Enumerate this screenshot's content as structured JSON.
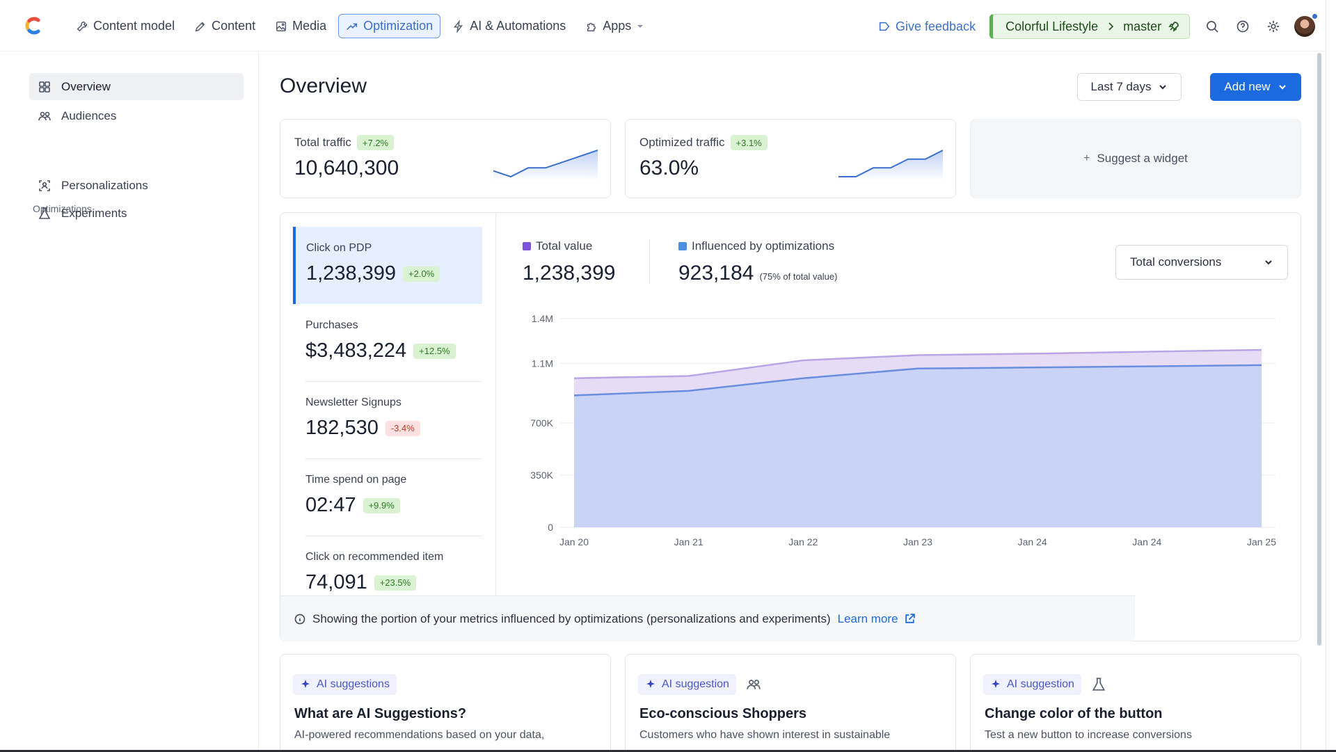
{
  "nav": {
    "items": [
      {
        "label": "Content model",
        "icon": "wrench-icon"
      },
      {
        "label": "Content",
        "icon": "pen-icon"
      },
      {
        "label": "Media",
        "icon": "image-icon"
      },
      {
        "label": "Optimization",
        "icon": "trend-icon",
        "active": true
      },
      {
        "label": "AI & Automations",
        "icon": "bolt-icon"
      },
      {
        "label": "Apps",
        "icon": "puzzle-icon"
      }
    ],
    "feedback": "Give feedback",
    "space": "Colorful Lifestyle",
    "environment": "master"
  },
  "sidebar": {
    "items": [
      {
        "label": "Overview",
        "active": true
      },
      {
        "label": "Audiences"
      }
    ],
    "section": "Optimizations",
    "optimizations": [
      {
        "label": "Personalizations"
      },
      {
        "label": "Experiments"
      }
    ]
  },
  "header": {
    "title": "Overview",
    "date_range": "Last 7 days",
    "add_new": "Add new"
  },
  "kpis": [
    {
      "label": "Total traffic",
      "change": "+7.2%",
      "value": "10,640,300",
      "spark": [
        3,
        1,
        4,
        4,
        6,
        8,
        10
      ]
    },
    {
      "label": "Optimized traffic",
      "change": "+3.1%",
      "value": "63.0%",
      "spark": [
        3,
        3,
        5,
        5,
        7,
        7,
        9
      ]
    }
  ],
  "suggest_widget": "Suggest a widget",
  "metrics": [
    {
      "label": "Click on PDP",
      "value": "1,238,399",
      "change": "+2.0%",
      "trend": "up",
      "selected": true
    },
    {
      "label": "Purchases",
      "value": "$3,483,224",
      "change": "+12.5%",
      "trend": "up"
    },
    {
      "label": "Newsletter Signups",
      "value": "182,530",
      "change": "-3.4%",
      "trend": "down"
    },
    {
      "label": "Time spend on page",
      "value": "02:47",
      "change": "+9.9%",
      "trend": "up"
    },
    {
      "label": "Click on recommended item",
      "value": "74,091",
      "change": "+23.5%",
      "trend": "up"
    }
  ],
  "legend": {
    "total_label": "Total value",
    "total_value": "1,238,399",
    "influenced_label": "Influenced by optimizations",
    "influenced_value": "923,184",
    "influenced_note": "(75% of total value)",
    "total_color": "#7a55d8",
    "influenced_color": "#4a90e2"
  },
  "conversion_select": "Total conversions",
  "chart_data": {
    "type": "area",
    "x": [
      "Jan 20",
      "Jan 21",
      "Jan 22",
      "Jan 23",
      "Jan 24",
      "Jan 24",
      "Jan 25"
    ],
    "series": [
      {
        "name": "Total value",
        "values": [
          1000000,
          1015000,
          1120000,
          1155000,
          1165000,
          1178000,
          1190000
        ],
        "color": "#b9a5e6"
      },
      {
        "name": "Influenced by optimizations",
        "values": [
          885000,
          915000,
          1000000,
          1065000,
          1072000,
          1080000,
          1088000
        ],
        "color": "#8da3e8"
      }
    ],
    "yticks": [
      0,
      350000,
      700000,
      1100000,
      1400000
    ],
    "ytick_labels": [
      "0",
      "350K",
      "700K",
      "1.1M",
      "1.4M"
    ],
    "ylim": [
      0,
      1400000
    ],
    "grid": true
  },
  "info": {
    "text": "Showing the portion of your metrics influenced by optimizations (personalizations and experiments)",
    "link": "Learn more"
  },
  "ai_cards": [
    {
      "tag": "AI suggestions",
      "title": "What are AI Suggestions?",
      "desc": "AI-powered recommendations based on your data,"
    },
    {
      "tag": "AI suggestion",
      "title": "Eco-conscious Shoppers",
      "desc": "Customers who have shown interest in sustainable",
      "extra_icon": "audience-icon"
    },
    {
      "tag": "AI suggestion",
      "title": "Change color of the button",
      "desc": "Test a new button to increase conversions",
      "extra_icon": "flask-icon"
    }
  ]
}
